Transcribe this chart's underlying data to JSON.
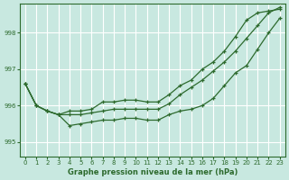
{
  "xlabel": "Graphe pression niveau de la mer (hPa)",
  "ylabel": "",
  "bg_color": "#c8e8e0",
  "grid_color": "#ffffff",
  "line_color": "#2d6a2d",
  "xlim": [
    -0.5,
    23.5
  ],
  "ylim": [
    994.6,
    998.8
  ],
  "yticks": [
    995,
    996,
    997,
    998
  ],
  "xticks": [
    0,
    1,
    2,
    3,
    4,
    5,
    6,
    7,
    8,
    9,
    10,
    11,
    12,
    13,
    14,
    15,
    16,
    17,
    18,
    19,
    20,
    21,
    22,
    23
  ],
  "line1_x": [
    0,
    1,
    2,
    3,
    4,
    5,
    6,
    7,
    8,
    9,
    10,
    11,
    12,
    13,
    14,
    15,
    16,
    17,
    18,
    19,
    20,
    21,
    22,
    23
  ],
  "line1_y": [
    996.6,
    996.0,
    995.85,
    995.75,
    995.45,
    995.5,
    995.55,
    995.6,
    995.6,
    995.65,
    995.65,
    995.6,
    995.6,
    995.75,
    995.85,
    995.9,
    996.0,
    996.2,
    996.55,
    996.9,
    997.1,
    997.55,
    998.0,
    998.4
  ],
  "line2_x": [
    0,
    1,
    2,
    3,
    4,
    5,
    6,
    7,
    8,
    9,
    10,
    11,
    12,
    13,
    14,
    15,
    16,
    17,
    18,
    19,
    20,
    21,
    22,
    23
  ],
  "line2_y": [
    996.6,
    996.0,
    995.85,
    995.75,
    995.85,
    995.85,
    995.9,
    996.1,
    996.1,
    996.15,
    996.15,
    996.1,
    996.1,
    996.3,
    996.55,
    996.7,
    997.0,
    997.2,
    997.5,
    997.9,
    998.35,
    998.55,
    998.6,
    998.65
  ],
  "line3_x": [
    0,
    1,
    2,
    3,
    4,
    5,
    6,
    7,
    8,
    9,
    10,
    11,
    12,
    13,
    14,
    15,
    16,
    17,
    18,
    19,
    20,
    21,
    22,
    23
  ],
  "line3_y": [
    996.6,
    996.0,
    995.85,
    995.75,
    995.75,
    995.75,
    995.8,
    995.85,
    995.9,
    995.9,
    995.9,
    995.9,
    995.9,
    996.05,
    996.3,
    996.5,
    996.7,
    996.95,
    997.2,
    997.5,
    997.85,
    998.2,
    998.55,
    998.7
  ]
}
